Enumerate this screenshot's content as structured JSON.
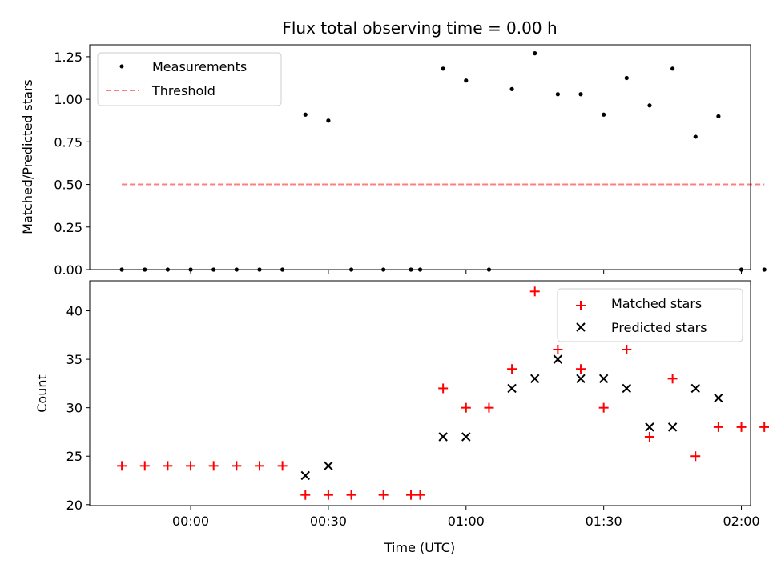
{
  "chart_data": [
    {
      "type": "scatter",
      "title": "Flux total observing time = 0.00 h",
      "xlabel": "",
      "ylabel": "Matched/Predicted stars",
      "ylim": [
        0,
        1.32
      ],
      "yticks": [
        "0.00",
        "0.25",
        "0.50",
        "0.75",
        "1.00",
        "1.25"
      ],
      "ytick_values": [
        0,
        0.25,
        0.5,
        0.75,
        1.0,
        1.25
      ],
      "xlim_minutes": [
        -22,
        122
      ],
      "legend": {
        "position": "top-left",
        "entries": [
          "Measurements",
          "Threshold"
        ]
      },
      "series": [
        {
          "name": "Measurements",
          "style": "dot",
          "color": "#000000",
          "points": [
            {
              "x": "23:45",
              "y": 0.0
            },
            {
              "x": "23:50",
              "y": 0.0
            },
            {
              "x": "23:55",
              "y": 0.0
            },
            {
              "x": "00:00",
              "y": 0.0
            },
            {
              "x": "00:05",
              "y": 0.0
            },
            {
              "x": "00:10",
              "y": 0.0
            },
            {
              "x": "00:15",
              "y": 0.0
            },
            {
              "x": "00:20",
              "y": 0.0
            },
            {
              "x": "00:25",
              "y": 0.91
            },
            {
              "x": "00:30",
              "y": 0.875
            },
            {
              "x": "00:35",
              "y": 0.0
            },
            {
              "x": "00:42",
              "y": 0.0
            },
            {
              "x": "00:48",
              "y": 0.0
            },
            {
              "x": "00:50",
              "y": 0.0
            },
            {
              "x": "00:55",
              "y": 1.18
            },
            {
              "x": "01:00",
              "y": 1.11
            },
            {
              "x": "01:05",
              "y": 0.0
            },
            {
              "x": "01:10",
              "y": 1.06
            },
            {
              "x": "01:15",
              "y": 1.27
            },
            {
              "x": "01:20",
              "y": 1.03
            },
            {
              "x": "01:25",
              "y": 1.03
            },
            {
              "x": "01:30",
              "y": 0.91
            },
            {
              "x": "01:35",
              "y": 1.125
            },
            {
              "x": "01:40",
              "y": 0.964
            },
            {
              "x": "01:45",
              "y": 1.18
            },
            {
              "x": "01:50",
              "y": 0.78
            },
            {
              "x": "01:55",
              "y": 0.9
            },
            {
              "x": "02:00",
              "y": 0.0
            },
            {
              "x": "02:05",
              "y": 0.0
            }
          ]
        },
        {
          "name": "Threshold",
          "style": "dashed-line",
          "color": "#ff7f7f",
          "points": [
            {
              "x": "23:45",
              "y": 0.5
            },
            {
              "x": "02:05",
              "y": 0.5
            }
          ]
        }
      ]
    },
    {
      "type": "scatter",
      "title": "",
      "xlabel": "Time (UTC)",
      "ylabel": "Count",
      "ylim": [
        19.9,
        43.1
      ],
      "yticks": [
        "20",
        "25",
        "30",
        "35",
        "40"
      ],
      "ytick_values": [
        20,
        25,
        30,
        35,
        40
      ],
      "xticks": [
        "00:00",
        "00:30",
        "01:00",
        "01:30",
        "02:00"
      ],
      "xlim_minutes": [
        -22,
        122
      ],
      "legend": {
        "position": "top-right",
        "entries": [
          "Matched stars",
          "Predicted stars"
        ]
      },
      "series": [
        {
          "name": "Matched stars",
          "style": "plus",
          "color": "#ff0000",
          "points": [
            {
              "x": "23:45",
              "y": 24
            },
            {
              "x": "23:50",
              "y": 24
            },
            {
              "x": "23:55",
              "y": 24
            },
            {
              "x": "00:00",
              "y": 24
            },
            {
              "x": "00:05",
              "y": 24
            },
            {
              "x": "00:10",
              "y": 24
            },
            {
              "x": "00:15",
              "y": 24
            },
            {
              "x": "00:20",
              "y": 24
            },
            {
              "x": "00:25",
              "y": 21
            },
            {
              "x": "00:30",
              "y": 21
            },
            {
              "x": "00:35",
              "y": 21
            },
            {
              "x": "00:42",
              "y": 21
            },
            {
              "x": "00:48",
              "y": 21
            },
            {
              "x": "00:50",
              "y": 21
            },
            {
              "x": "00:55",
              "y": 32
            },
            {
              "x": "01:00",
              "y": 30
            },
            {
              "x": "01:05",
              "y": 30
            },
            {
              "x": "01:10",
              "y": 34
            },
            {
              "x": "01:15",
              "y": 42
            },
            {
              "x": "01:20",
              "y": 36
            },
            {
              "x": "01:25",
              "y": 34
            },
            {
              "x": "01:30",
              "y": 30
            },
            {
              "x": "01:35",
              "y": 36
            },
            {
              "x": "01:40",
              "y": 27
            },
            {
              "x": "01:45",
              "y": 33
            },
            {
              "x": "01:50",
              "y": 25
            },
            {
              "x": "01:55",
              "y": 28
            },
            {
              "x": "02:00",
              "y": 28
            },
            {
              "x": "02:05",
              "y": 28
            }
          ]
        },
        {
          "name": "Predicted stars",
          "style": "x",
          "color": "#000000",
          "points": [
            {
              "x": "00:25",
              "y": 23
            },
            {
              "x": "00:30",
              "y": 24
            },
            {
              "x": "00:55",
              "y": 27
            },
            {
              "x": "01:00",
              "y": 27
            },
            {
              "x": "01:10",
              "y": 32
            },
            {
              "x": "01:15",
              "y": 33
            },
            {
              "x": "01:20",
              "y": 35
            },
            {
              "x": "01:25",
              "y": 33
            },
            {
              "x": "01:30",
              "y": 33
            },
            {
              "x": "01:35",
              "y": 32
            },
            {
              "x": "01:40",
              "y": 28
            },
            {
              "x": "01:45",
              "y": 28
            },
            {
              "x": "01:50",
              "y": 32
            },
            {
              "x": "01:55",
              "y": 31
            }
          ]
        }
      ]
    }
  ]
}
